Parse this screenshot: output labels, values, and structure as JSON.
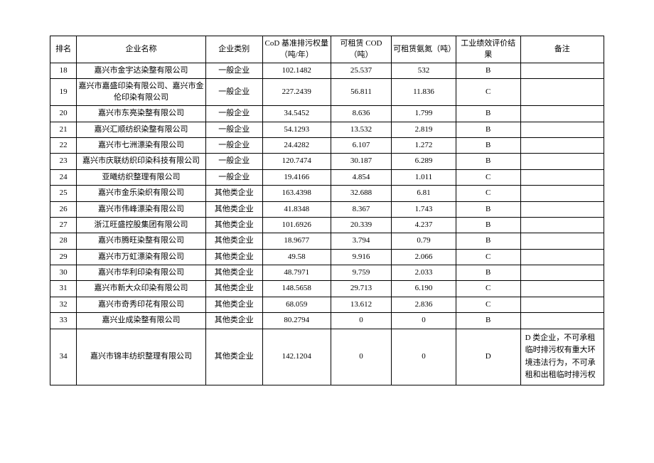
{
  "columns": [
    "排名",
    "企业名称",
    "企业类别",
    "CoD 基准排污权量（吨/年）",
    "可租赁 COD（吨）",
    "可租赁氨氮（吨）",
    "工业绩效评价结果",
    "备注"
  ],
  "rows": [
    {
      "rank": "18",
      "name": "嘉兴市金宇达染整有限公司",
      "type": "一般企业",
      "cod_base": "102.1482",
      "cod_rent": "25.537",
      "nh": "532",
      "eval": "B",
      "remark": ""
    },
    {
      "rank": "19",
      "name": "嘉兴市嘉盛印染有限公司、嘉兴市金伦印染有限公司",
      "type": "一般企业",
      "cod_base": "227.2439",
      "cod_rent": "56.811",
      "nh": "11.836",
      "eval": "C",
      "remark": ""
    },
    {
      "rank": "20",
      "name": "嘉兴市东亮染整有限公司",
      "type": "一般企业",
      "cod_base": "34.5452",
      "cod_rent": "8.636",
      "nh": "1.799",
      "eval": "B",
      "remark": ""
    },
    {
      "rank": "21",
      "name": "嘉兴汇顺纺织染整有限公司",
      "type": "一般企业",
      "cod_base": "54.1293",
      "cod_rent": "13.532",
      "nh": "2.819",
      "eval": "B",
      "remark": ""
    },
    {
      "rank": "22",
      "name": "嘉兴市七洲漂染有限公司",
      "type": "一般企业",
      "cod_base": "24.4282",
      "cod_rent": "6.107",
      "nh": "1.272",
      "eval": "B",
      "remark": ""
    },
    {
      "rank": "23",
      "name": "嘉兴市庆联纺织印染科技有限公司",
      "type": "一般企业",
      "cod_base": "120.7474",
      "cod_rent": "30.187",
      "nh": "6.289",
      "eval": "B",
      "remark": ""
    },
    {
      "rank": "24",
      "name": "亚曦纺织整理有限公司",
      "type": "一般企业",
      "cod_base": "19.4166",
      "cod_rent": "4.854",
      "nh": "1.011",
      "eval": "C",
      "remark": ""
    },
    {
      "rank": "25",
      "name": "嘉兴市金乐染织有限公司",
      "type": "其他类企业",
      "cod_base": "163.4398",
      "cod_rent": "32.688",
      "nh": "6.81",
      "eval": "C",
      "remark": ""
    },
    {
      "rank": "26",
      "name": "嘉兴市伟峰漂染有限公司",
      "type": "其他类企业",
      "cod_base": "41.8348",
      "cod_rent": "8.367",
      "nh": "1.743",
      "eval": "B",
      "remark": ""
    },
    {
      "rank": "27",
      "name": "浙江旺盛控股集团有限公司",
      "type": "其他类企业",
      "cod_base": "101.6926",
      "cod_rent": "20.339",
      "nh": "4.237",
      "eval": "B",
      "remark": ""
    },
    {
      "rank": "28",
      "name": "嘉兴市腾旺染整有限公司",
      "type": "其他类企业",
      "cod_base": "18.9677",
      "cod_rent": "3.794",
      "nh": "0.79",
      "eval": "B",
      "remark": ""
    },
    {
      "rank": "29",
      "name": "嘉兴市万虹漂染有限公司",
      "type": "其他类企业",
      "cod_base": "49.58",
      "cod_rent": "9.916",
      "nh": "2.066",
      "eval": "C",
      "remark": ""
    },
    {
      "rank": "30",
      "name": "嘉兴市华利印染有限公司",
      "type": "其他类企业",
      "cod_base": "48.7971",
      "cod_rent": "9.759",
      "nh": "2.033",
      "eval": "B",
      "remark": ""
    },
    {
      "rank": "31",
      "name": "嘉兴市新大众印染有限公司",
      "type": "其他类企业",
      "cod_base": "148.5658",
      "cod_rent": "29.713",
      "nh": "6.190",
      "eval": "C",
      "remark": ""
    },
    {
      "rank": "32",
      "name": "嘉兴市奇秀印花有限公司",
      "type": "其他类企业",
      "cod_base": "68.059",
      "cod_rent": "13.612",
      "nh": "2.836",
      "eval": "C",
      "remark": ""
    },
    {
      "rank": "33",
      "name": "嘉兴业成染整有限公司",
      "type": "其他类企业",
      "cod_base": "80.2794",
      "cod_rent": "0",
      "nh": "0",
      "eval": "B",
      "remark": ""
    },
    {
      "rank": "34",
      "name": "嘉兴市锦丰纺织整理有限公司",
      "type": "其他类企业",
      "cod_base": "142.1204",
      "cod_rent": "0",
      "nh": "0",
      "eval": "D",
      "remark": "D 类企业，不可承租临时排污权有重大环境违法行为，不可承租和出租临时排污权"
    }
  ],
  "styles": {
    "border_color": "#000000",
    "font_size": 11,
    "background": "#ffffff"
  }
}
